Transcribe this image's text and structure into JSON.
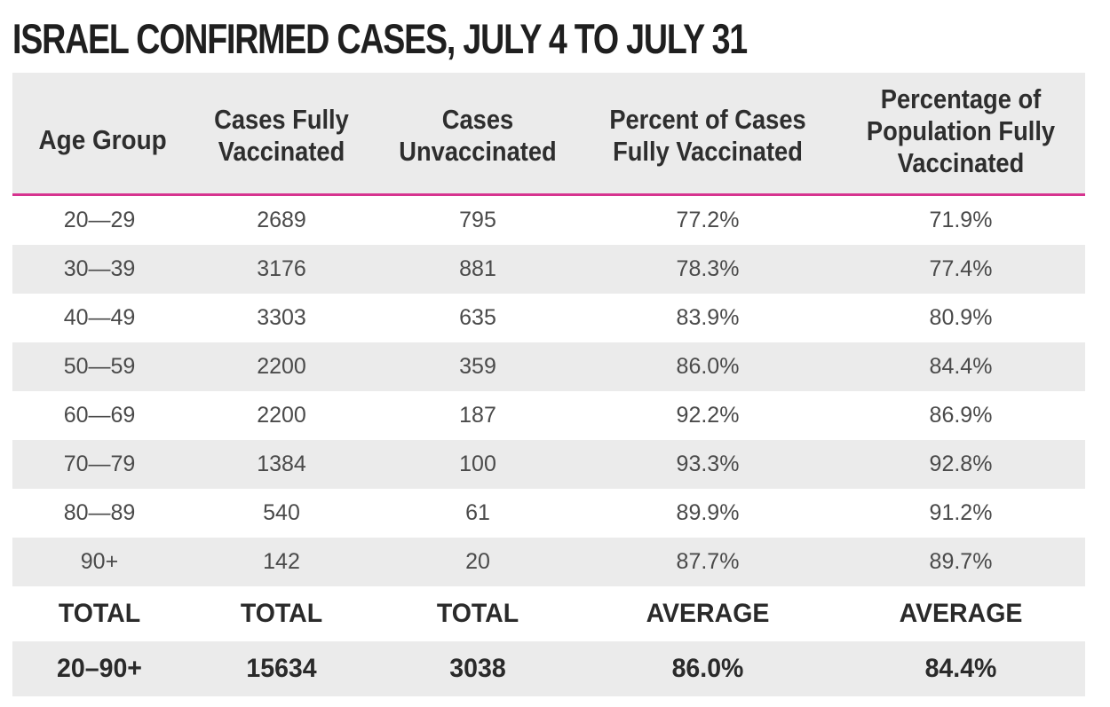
{
  "chart_data": {
    "type": "table",
    "title": "ISRAEL CONFIRMED CASES, JULY 4 TO JULY 31",
    "columns": [
      "Age Group",
      "Cases Fully Vaccinated",
      "Cases Unvaccinated",
      "Percent of Cases Fully Vaccinated",
      "Percentage of Population Fully Vaccinated"
    ],
    "header_lines": [
      [
        "Age Group"
      ],
      [
        "Cases Fully",
        "Vaccinated"
      ],
      [
        "Cases",
        "Unvaccinated"
      ],
      [
        "Percent of Cases",
        "Fully Vaccinated"
      ],
      [
        "Percentage of",
        "Population Fully",
        "Vaccinated"
      ]
    ],
    "rows": [
      [
        "20—29",
        "2689",
        "795",
        "77.2%",
        "71.9%"
      ],
      [
        "30—39",
        "3176",
        "881",
        "78.3%",
        "77.4%"
      ],
      [
        "40—49",
        "3303",
        "635",
        "83.9%",
        "80.9%"
      ],
      [
        "50—59",
        "2200",
        "359",
        "86.0%",
        "84.4%"
      ],
      [
        "60—69",
        "2200",
        "187",
        "92.2%",
        "86.9%"
      ],
      [
        "70—79",
        "1384",
        "100",
        "93.3%",
        "92.8%"
      ],
      [
        "80—89",
        "540",
        "61",
        "89.9%",
        "91.2%"
      ],
      [
        "90+",
        "142",
        "20",
        "87.7%",
        "89.7%"
      ]
    ],
    "summary_labels": [
      "TOTAL",
      "TOTAL",
      "TOTAL",
      "AVERAGE",
      "AVERAGE"
    ],
    "summary_values": [
      "20–90+",
      "15634",
      "3038",
      "86.0%",
      "84.4%"
    ]
  },
  "colors": {
    "accent_rule": "#d6338f",
    "stripe": "#ebebeb"
  }
}
